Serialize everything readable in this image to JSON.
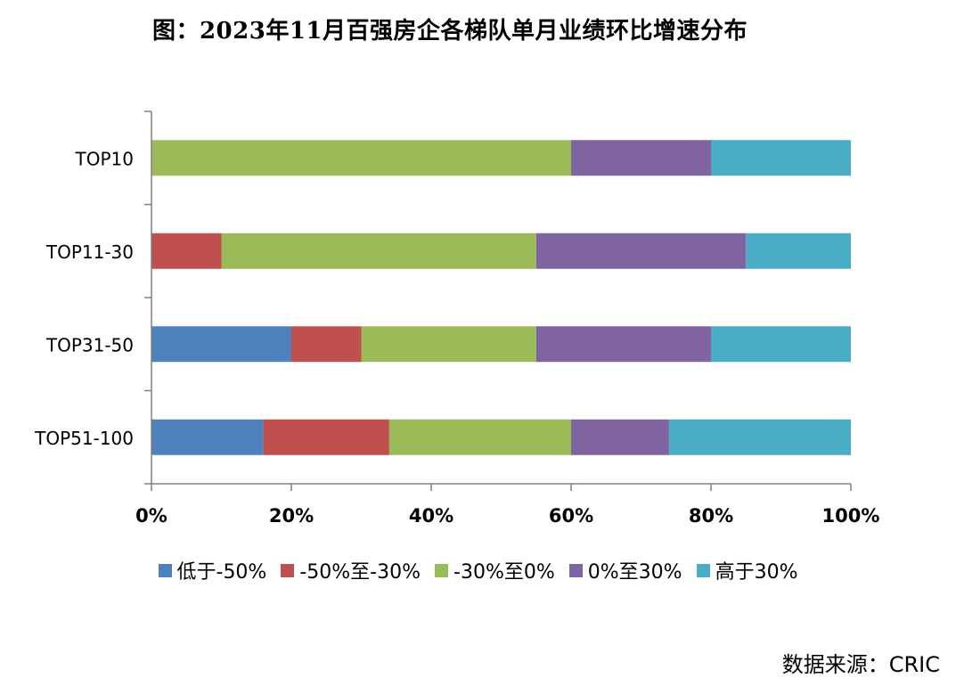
{
  "title": "图：2023年11月百强房企各梯队单月业绩环比增速分布",
  "source": "数据来源：CRIC",
  "chart_data": {
    "type": "bar",
    "orientation": "horizontal",
    "stacked": "percent",
    "categories": [
      "TOP10",
      "TOP11-30",
      "TOP31-50",
      "TOP51-100"
    ],
    "series": [
      {
        "name": "低于-50%",
        "color": "#4f81bd",
        "values": [
          0,
          0,
          20,
          16
        ]
      },
      {
        "name": "-50%至-30%",
        "color": "#c0504d",
        "values": [
          0,
          10,
          10,
          18
        ]
      },
      {
        "name": "-30%至0%",
        "color": "#9bbb59",
        "values": [
          60,
          45,
          25,
          26
        ]
      },
      {
        "name": "0%至30%",
        "color": "#8064a2",
        "values": [
          20,
          30,
          25,
          14
        ]
      },
      {
        "name": "高于30%",
        "color": "#4bacc6",
        "values": [
          20,
          15,
          20,
          26
        ]
      }
    ],
    "xlim": [
      0,
      100
    ],
    "xticks": [
      "0%",
      "20%",
      "40%",
      "60%",
      "80%",
      "100%"
    ],
    "grid": false,
    "legend_position": "bottom"
  }
}
